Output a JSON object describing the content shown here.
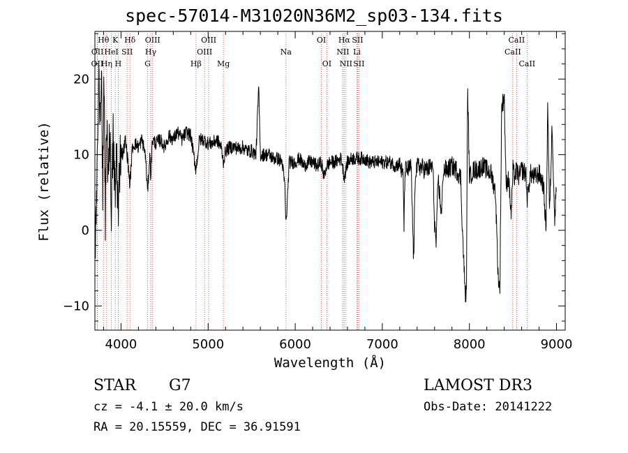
{
  "page": {
    "object_class": "STAR",
    "subclass": "G7",
    "survey": "LAMOST DR3",
    "cz_text": "cz = -4.1 ± 20.0 km/s",
    "obs_date_text": "Obs-Date: 20141222",
    "radec_text": "RA =  20.15559, DEC =  36.91591"
  },
  "chart_data": {
    "type": "line",
    "title": "spec-57014-M31020N36M2_sp03-134.fits",
    "xlabel": "Wavelength (Å)",
    "ylabel": "Flux (relative)",
    "xlim": [
      3700,
      9100
    ],
    "ylim": [
      -13.2,
      26.3
    ],
    "x_ticks": [
      4000,
      5000,
      6000,
      7000,
      8000,
      9000
    ],
    "y_ticks": [
      -10,
      0,
      10,
      20
    ],
    "x_minor_step": 200,
    "y_minor_step": 2,
    "grid": false,
    "line_color": "#000000",
    "marker_color": "#cc3333",
    "line_markers": [
      {
        "label": "OII",
        "wavelength": 3727,
        "row": 3
      },
      {
        "label": "OII",
        "wavelength": 3729,
        "row": 2
      },
      {
        "label": "Hθ",
        "wavelength": 3798,
        "row": 1
      },
      {
        "label": "Hη",
        "wavelength": 3835,
        "row": 3
      },
      {
        "label": "HeI",
        "wavelength": 3889,
        "row": 2
      },
      {
        "label": "K",
        "wavelength": 3934,
        "row": 1
      },
      {
        "label": "H",
        "wavelength": 3968,
        "row": 3
      },
      {
        "label": "SII",
        "wavelength": 4070,
        "row": 2
      },
      {
        "label": "Hδ",
        "wavelength": 4102,
        "row": 1
      },
      {
        "label": "G",
        "wavelength": 4305,
        "row": 3
      },
      {
        "label": "Hγ",
        "wavelength": 4341,
        "row": 2
      },
      {
        "label": "OIII",
        "wavelength": 4363,
        "row": 1
      },
      {
        "label": "Hβ",
        "wavelength": 4861,
        "row": 3
      },
      {
        "label": "OIII",
        "wavelength": 4959,
        "row": 2
      },
      {
        "label": "OIII",
        "wavelength": 5007,
        "row": 1
      },
      {
        "label": "Mg",
        "wavelength": 5175,
        "row": 3
      },
      {
        "label": "Na",
        "wavelength": 5894,
        "row": 2
      },
      {
        "label": "OI",
        "wavelength": 6300,
        "row": 1
      },
      {
        "label": "OI",
        "wavelength": 6363,
        "row": 3
      },
      {
        "label": "NII",
        "wavelength": 6548,
        "row": 2
      },
      {
        "label": "Hα",
        "wavelength": 6563,
        "row": 1
      },
      {
        "label": "NII",
        "wavelength": 6583,
        "row": 3
      },
      {
        "label": "Li",
        "wavelength": 6708,
        "row": 2
      },
      {
        "label": "SII",
        "wavelength": 6716,
        "row": 1
      },
      {
        "label": "SII",
        "wavelength": 6731,
        "row": 3
      },
      {
        "label": "CaII",
        "wavelength": 8498,
        "row": 2
      },
      {
        "label": "CaII",
        "wavelength": 8542,
        "row": 1
      },
      {
        "label": "CaII",
        "wavelength": 8662,
        "row": 3
      }
    ],
    "series": [
      {
        "name": "flux",
        "anchors": [
          [
            3700,
            -3
          ],
          [
            3715,
            4
          ],
          [
            3730,
            12
          ],
          [
            3745,
            20
          ],
          [
            3760,
            14
          ],
          [
            3775,
            22
          ],
          [
            3790,
            5
          ],
          [
            3805,
            20
          ],
          [
            3820,
            2
          ],
          [
            3835,
            16
          ],
          [
            3850,
            8
          ],
          [
            3870,
            13
          ],
          [
            3890,
            3
          ],
          [
            3910,
            12
          ],
          [
            3934,
            4
          ],
          [
            3950,
            11
          ],
          [
            3968,
            1
          ],
          [
            3990,
            11
          ],
          [
            4020,
            10
          ],
          [
            4050,
            12
          ],
          [
            4080,
            9
          ],
          [
            4102,
            6
          ],
          [
            4130,
            11
          ],
          [
            4160,
            11.5
          ],
          [
            4200,
            11
          ],
          [
            4240,
            12
          ],
          [
            4280,
            10
          ],
          [
            4305,
            5
          ],
          [
            4330,
            10
          ],
          [
            4341,
            7
          ],
          [
            4360,
            12
          ],
          [
            4400,
            11.5
          ],
          [
            4450,
            12
          ],
          [
            4500,
            11
          ],
          [
            4550,
            12.5
          ],
          [
            4600,
            12
          ],
          [
            4650,
            13
          ],
          [
            4700,
            12
          ],
          [
            4750,
            13
          ],
          [
            4800,
            12.5
          ],
          [
            4861,
            8
          ],
          [
            4900,
            12
          ],
          [
            4950,
            12
          ],
          [
            5000,
            11.5
          ],
          [
            5050,
            11.5
          ],
          [
            5100,
            12
          ],
          [
            5150,
            11
          ],
          [
            5175,
            9
          ],
          [
            5200,
            10.5
          ],
          [
            5250,
            11
          ],
          [
            5300,
            11
          ],
          [
            5350,
            10.8
          ],
          [
            5400,
            11
          ],
          [
            5450,
            10.5
          ],
          [
            5500,
            10.5
          ],
          [
            5550,
            10
          ],
          [
            5580,
            19
          ],
          [
            5600,
            10
          ],
          [
            5650,
            10
          ],
          [
            5700,
            10
          ],
          [
            5750,
            9.5
          ],
          [
            5800,
            9.5
          ],
          [
            5850,
            9
          ],
          [
            5880,
            6
          ],
          [
            5894,
            0.5
          ],
          [
            5910,
            4
          ],
          [
            5930,
            9
          ],
          [
            6000,
            9
          ],
          [
            6050,
            9.5
          ],
          [
            6100,
            8.5
          ],
          [
            6150,
            9
          ],
          [
            6200,
            9
          ],
          [
            6250,
            8.5
          ],
          [
            6300,
            9
          ],
          [
            6330,
            7
          ],
          [
            6360,
            8.5
          ],
          [
            6400,
            9
          ],
          [
            6450,
            9
          ],
          [
            6500,
            9.3
          ],
          [
            6530,
            9.5
          ],
          [
            6563,
            7
          ],
          [
            6600,
            9
          ],
          [
            6650,
            9.5
          ],
          [
            6700,
            9.5
          ],
          [
            6750,
            9.5
          ],
          [
            6800,
            9.5
          ],
          [
            6850,
            9
          ],
          [
            6900,
            9
          ],
          [
            6950,
            9
          ],
          [
            7000,
            9
          ],
          [
            7050,
            9
          ],
          [
            7100,
            9
          ],
          [
            7150,
            8.5
          ],
          [
            7200,
            8.8
          ],
          [
            7240,
            7
          ],
          [
            7250,
            0
          ],
          [
            7260,
            8
          ],
          [
            7300,
            8
          ],
          [
            7330,
            8.5
          ],
          [
            7360,
            -4
          ],
          [
            7380,
            8
          ],
          [
            7420,
            8.5
          ],
          [
            7500,
            8
          ],
          [
            7580,
            8.5
          ],
          [
            7600,
            1
          ],
          [
            7620,
            -2
          ],
          [
            7640,
            7
          ],
          [
            7680,
            2
          ],
          [
            7700,
            8
          ],
          [
            7750,
            8
          ],
          [
            7800,
            8.5
          ],
          [
            7850,
            8
          ],
          [
            7900,
            7
          ],
          [
            7920,
            0
          ],
          [
            7950,
            -8
          ],
          [
            7965,
            -9
          ],
          [
            7980,
            19
          ],
          [
            8000,
            7
          ],
          [
            8050,
            8
          ],
          [
            8100,
            8
          ],
          [
            8150,
            8.5
          ],
          [
            8200,
            8
          ],
          [
            8250,
            7.5
          ],
          [
            8300,
            5
          ],
          [
            8330,
            -6
          ],
          [
            8350,
            -8
          ],
          [
            8370,
            16
          ],
          [
            8400,
            18
          ],
          [
            8420,
            6
          ],
          [
            8450,
            7
          ],
          [
            8480,
            2
          ],
          [
            8500,
            8
          ],
          [
            8520,
            7
          ],
          [
            8542,
            8
          ],
          [
            8570,
            7
          ],
          [
            8600,
            8
          ],
          [
            8650,
            7.5
          ],
          [
            8662,
            4
          ],
          [
            8700,
            7.5
          ],
          [
            8750,
            7
          ],
          [
            8800,
            7.5
          ],
          [
            8850,
            6
          ],
          [
            8880,
            0
          ],
          [
            8900,
            17
          ],
          [
            8920,
            2
          ],
          [
            8950,
            14
          ],
          [
            8980,
            1
          ],
          [
            9000,
            7
          ]
        ]
      }
    ]
  }
}
